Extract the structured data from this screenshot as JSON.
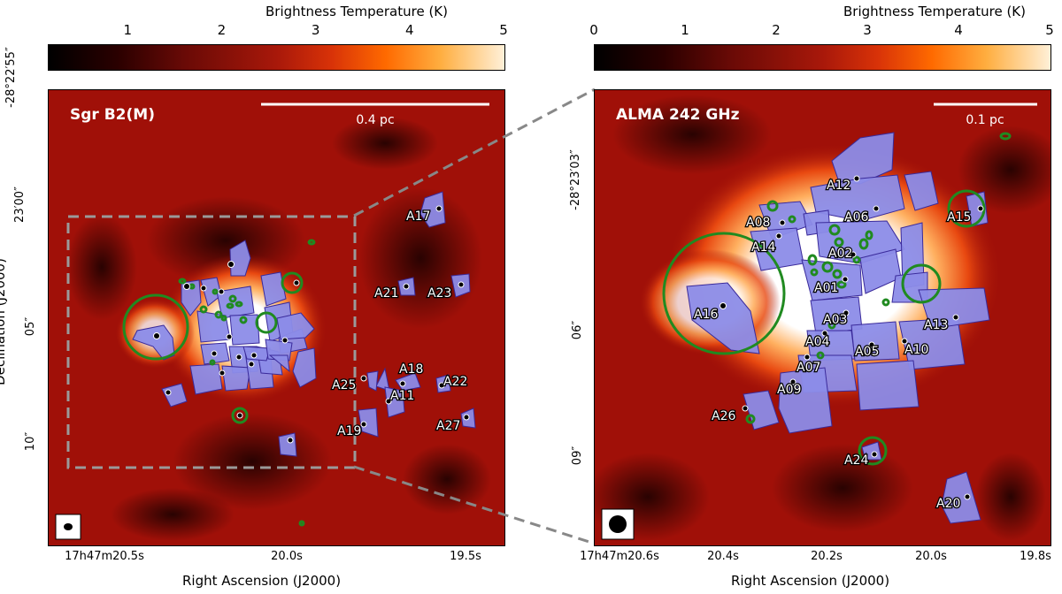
{
  "colorbar": {
    "title": "Brightness Temperature (K)",
    "left_ticks": [
      "1",
      "2",
      "3",
      "4",
      "5"
    ],
    "right_ticks": [
      "0",
      "1",
      "2",
      "3",
      "4",
      "5"
    ]
  },
  "left_panel": {
    "title": "Sgr B2(M)",
    "scale_bar": "0.4 pc",
    "x_axis_label": "Right Ascension (J2000)",
    "y_axis_label": "Declination (J2000)",
    "x_ticks": [
      "17h47m20.5s",
      "20.0s",
      "19.5s"
    ],
    "y_ticks": [
      "-28°22′55″",
      "23′00″",
      "05″",
      "10″"
    ],
    "sources": [
      "A17",
      "A21",
      "A23",
      "A18",
      "A22",
      "A25",
      "A11",
      "A19",
      "A27"
    ]
  },
  "right_panel": {
    "title": "ALMA 242 GHz",
    "scale_bar": "0.1 pc",
    "x_axis_label": "Right Ascension (J2000)",
    "y_axis_label": "",
    "x_ticks": [
      "17h47m20.6s",
      "20.4s",
      "20.2s",
      "20.0s",
      "19.8s"
    ],
    "y_ticks": [
      "-28°23′03″",
      "06″",
      "09″"
    ],
    "sources": [
      "A12",
      "A08",
      "A06",
      "A15",
      "A14",
      "A02",
      "A01",
      "A16",
      "A03",
      "A13",
      "A04",
      "A10",
      "A05",
      "A07",
      "A09",
      "A26",
      "A24",
      "A20"
    ]
  },
  "colors": {
    "background": "#a01008",
    "core": "#ffffff",
    "source_fill": "#8c8ce8",
    "source_outline": "#3a2a9a",
    "ring": "#208a20",
    "zoom_box": "#9a9a9a"
  }
}
